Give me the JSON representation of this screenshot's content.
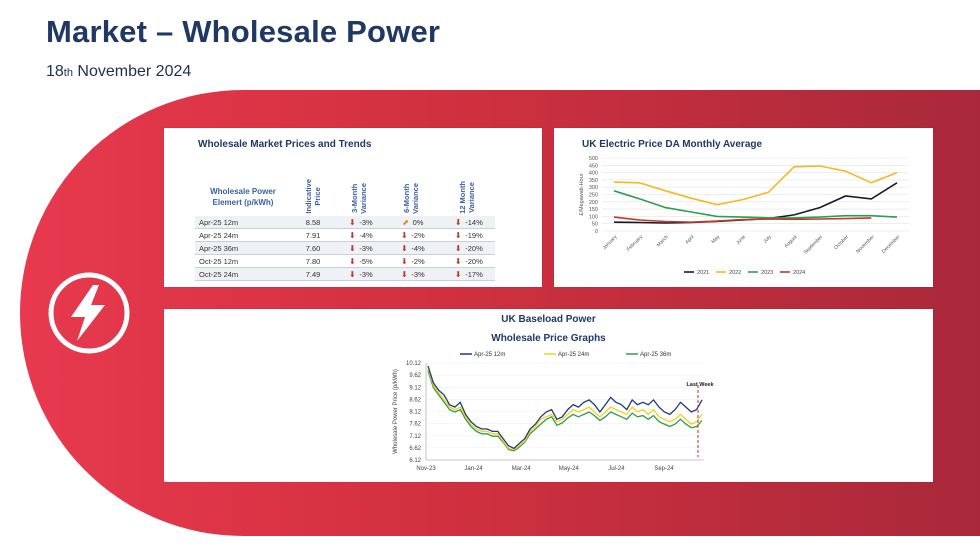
{
  "header": {
    "title": "Market – Wholesale Power",
    "date_day": "18",
    "date_suffix": "th",
    "date_rest": " November 2024"
  },
  "colors": {
    "band_start": "#e8394f",
    "band_end": "#a6283a",
    "title": "#1f3864"
  },
  "icons": {
    "hero": "lightning-bolt-icon",
    "down": "down-arrow-icon",
    "up": "up-arrow-icon"
  },
  "wholesale_table": {
    "title": "Wholesale Market Prices and Trends",
    "header": {
      "element": "Wholesale Power Elemert (p/kWh)",
      "price": "Indicative\nPrice",
      "m3": "3-Month\nVariance",
      "m6": "6-Month\nVariance",
      "m12": "12 Month\nVariance"
    },
    "rows": [
      {
        "label": "Apr-25 12m",
        "price": "8.58",
        "m3": "-3%",
        "m3dir": "down",
        "m6": "0%",
        "m6dir": "up",
        "m12": "-14%",
        "m12dir": "down"
      },
      {
        "label": "Apr-25 24m",
        "price": "7.91",
        "m3": "-4%",
        "m3dir": "down",
        "m6": "-2%",
        "m6dir": "down",
        "m12": "-19%",
        "m12dir": "down"
      },
      {
        "label": "Apr-25 36m",
        "price": "7.60",
        "m3": "-3%",
        "m3dir": "down",
        "m6": "-4%",
        "m6dir": "down",
        "m12": "-20%",
        "m12dir": "down"
      },
      {
        "label": "Oct-25 12m",
        "price": "7.80",
        "m3": "-5%",
        "m3dir": "down",
        "m6": "-2%",
        "m6dir": "down",
        "m12": "-20%",
        "m12dir": "down"
      },
      {
        "label": "Oct-25 24m",
        "price": "7.49",
        "m3": "-3%",
        "m3dir": "down",
        "m6": "-3%",
        "m6dir": "down",
        "m12": "-17%",
        "m12dir": "down"
      }
    ]
  },
  "chart_data": [
    {
      "type": "line",
      "title": "UK Electric Price DA Monthly Average",
      "ylabel": "£/Megawatt-Hour",
      "ylim": [
        0,
        500
      ],
      "yticks": [
        0,
        50,
        100,
        150,
        200,
        250,
        300,
        350,
        400,
        450,
        500
      ],
      "categories": [
        "January",
        "February",
        "March",
        "April",
        "May",
        "June",
        "July",
        "August",
        "September",
        "October",
        "November",
        "December"
      ],
      "legend_position": "bottom",
      "grid": true,
      "series": [
        {
          "name": "2021",
          "color": "#1a1a2e",
          "values": [
            60,
            58,
            55,
            58,
            65,
            75,
            85,
            110,
            160,
            240,
            220,
            330
          ]
        },
        {
          "name": "2022",
          "color": "#f5b820",
          "values": [
            335,
            330,
            275,
            225,
            180,
            215,
            265,
            440,
            445,
            410,
            330,
            400
          ]
        },
        {
          "name": "2023",
          "color": "#2e9e4f",
          "values": [
            275,
            220,
            160,
            130,
            100,
            95,
            90,
            90,
            95,
            105,
            105,
            95
          ]
        },
        {
          "name": "2024",
          "color": "#c0392b",
          "values": [
            95,
            75,
            65,
            60,
            68,
            78,
            82,
            80,
            82,
            85,
            90,
            null
          ]
        }
      ]
    },
    {
      "type": "line",
      "title": "Wholesale Price Graphs",
      "supertitle": "UK Baseload Power",
      "ylabel": "Wholesale Power Price (p/kWh)",
      "ylim": [
        6.12,
        10.12
      ],
      "yticks": [
        "10.12",
        "9.62",
        "9.12",
        "8.62",
        "8.12",
        "7.62",
        "7.12",
        "6.62",
        "6.12"
      ],
      "xticks": [
        "Nov-23",
        "Jan-24",
        "Mar-24",
        "May-24",
        "Jul-24",
        "Sep-24"
      ],
      "annotation": "Last Week",
      "legend_position": "top",
      "series": [
        {
          "name": "Apr-25 12m",
          "color": "#1f3a7a",
          "values": [
            10.0,
            9.3,
            9.0,
            8.8,
            8.4,
            8.3,
            8.5,
            8.0,
            7.7,
            7.5,
            7.4,
            7.4,
            7.3,
            7.3,
            7.0,
            6.7,
            6.6,
            6.8,
            7.0,
            7.4,
            7.6,
            7.9,
            8.1,
            8.2,
            7.8,
            7.9,
            8.2,
            8.4,
            8.3,
            8.5,
            8.6,
            8.4,
            8.1,
            8.4,
            8.7,
            8.5,
            8.4,
            8.2,
            8.6,
            8.4,
            8.5,
            8.4,
            8.6,
            8.3,
            8.1,
            8.0,
            8.2,
            8.5,
            8.3,
            8.1,
            8.2,
            8.6
          ]
        },
        {
          "name": "Apr-25 24m",
          "color": "#f5d020",
          "values": [
            9.9,
            9.2,
            8.9,
            8.6,
            8.3,
            8.2,
            8.3,
            7.9,
            7.6,
            7.4,
            7.3,
            7.3,
            7.2,
            7.2,
            6.9,
            6.6,
            6.55,
            6.7,
            6.9,
            7.3,
            7.5,
            7.8,
            7.9,
            8.0,
            7.7,
            7.8,
            8.0,
            8.2,
            8.1,
            8.2,
            8.3,
            8.1,
            7.9,
            8.1,
            8.3,
            8.2,
            8.1,
            8.0,
            8.3,
            8.1,
            8.2,
            8.0,
            8.2,
            7.9,
            7.8,
            7.7,
            7.8,
            8.0,
            7.8,
            7.6,
            7.7,
            8.0
          ]
        },
        {
          "name": "Apr-25 36m",
          "color": "#2e9e4f",
          "values": [
            9.8,
            9.1,
            8.8,
            8.5,
            8.2,
            8.1,
            8.2,
            7.8,
            7.5,
            7.3,
            7.2,
            7.2,
            7.1,
            7.1,
            6.85,
            6.55,
            6.5,
            6.65,
            6.85,
            7.2,
            7.4,
            7.6,
            7.8,
            7.9,
            7.55,
            7.65,
            7.85,
            8.0,
            7.9,
            8.0,
            8.1,
            7.95,
            7.75,
            7.9,
            8.1,
            8.0,
            7.9,
            7.8,
            8.05,
            7.9,
            7.95,
            7.8,
            7.95,
            7.7,
            7.6,
            7.5,
            7.6,
            7.8,
            7.6,
            7.45,
            7.5,
            7.75
          ]
        }
      ]
    }
  ]
}
